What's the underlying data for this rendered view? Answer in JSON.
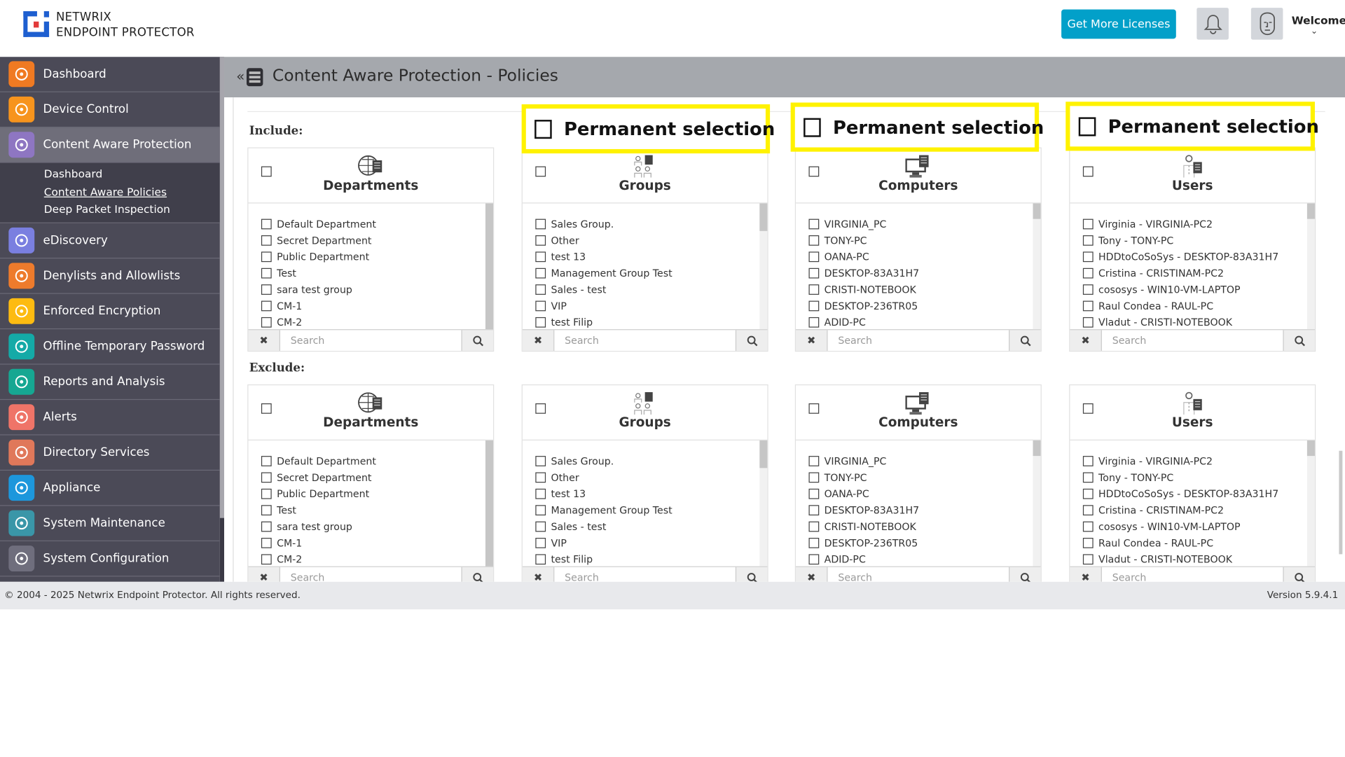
{
  "header": {
    "brand_line1": "NETWRIX",
    "brand_line2": "ENDPOINT PROTECTOR",
    "get_licenses": "Get More Licenses",
    "welcome": "Welcome",
    "accent": "#02a0c9"
  },
  "sidebar": {
    "items": [
      {
        "label": "Dashboard",
        "icon": "pie-chart-icon",
        "color": "#f07a22"
      },
      {
        "label": "Device Control",
        "icon": "usb-icon",
        "color": "#f7941d"
      },
      {
        "label": "Content Aware Protection",
        "icon": "document-scan-icon",
        "color": "#8e76c2",
        "active": true
      },
      {
        "label": "eDiscovery",
        "icon": "telescope-icon",
        "color": "#7a7fe0"
      },
      {
        "label": "Denylists and Allowlists",
        "icon": "checklist-icon",
        "color": "#ee7b2c"
      },
      {
        "label": "Enforced Encryption",
        "icon": "dial-lock-icon",
        "color": "#fdbb11"
      },
      {
        "label": "Offline Temporary Password",
        "icon": "keypad-icon",
        "color": "#14aaa7"
      },
      {
        "label": "Reports and Analysis",
        "icon": "area-chart-icon",
        "color": "#16a792"
      },
      {
        "label": "Alerts",
        "icon": "warning-icon",
        "color": "#ef7468"
      },
      {
        "label": "Directory Services",
        "icon": "briefcase-sync-icon",
        "color": "#e0785a"
      },
      {
        "label": "Appliance",
        "icon": "appliance-icon",
        "color": "#1d97dc"
      },
      {
        "label": "System Maintenance",
        "icon": "tools-icon",
        "color": "#3a96a8"
      },
      {
        "label": "System Configuration",
        "icon": "gear-icon",
        "color": "#6f6e7d"
      }
    ],
    "submenu": [
      "Dashboard",
      "Content Aware Policies",
      "Deep Packet Inspection"
    ],
    "submenu_current": "Content Aware Policies"
  },
  "titlebar": {
    "title": "Content Aware Protection - Policies"
  },
  "include_label": "Include:",
  "exclude_label": "Exclude:",
  "permanent_selection": "Permanent selection",
  "search_placeholder": "Search",
  "cards": [
    {
      "title": "Departments",
      "icon": "globe-document-icon",
      "items": [
        "Default Department",
        "Secret Department",
        "Public Department",
        "Test",
        "sara test group",
        "CM-1",
        "CM-2"
      ]
    },
    {
      "title": "Groups",
      "icon": "group-users-icon",
      "items": [
        "Sales Group.",
        "Other",
        "test 13",
        "Management Group Test",
        "Sales - test",
        "VIP",
        "test Filip"
      ]
    },
    {
      "title": "Computers",
      "icon": "computer-icon",
      "items": [
        "VIRGINIA_PC",
        "TONY-PC",
        "OANA-PC",
        "DESKTOP-83A31H7",
        "CRISTI-NOTEBOOK",
        "DESKTOP-236TR05",
        "ADID-PC"
      ]
    },
    {
      "title": "Users",
      "icon": "user-icon",
      "items": [
        "Virginia - VIRGINIA-PC2",
        "Tony - TONY-PC",
        "HDDtoCoSoSys - DESKTOP-83A31H7",
        "Cristina - CRISTINAM-PC2",
        "cososys - WIN10-VM-LAPTOP",
        "Raul Condea - RAUL-PC",
        "Vladut - CRISTI-NOTEBOOK"
      ]
    }
  ],
  "footer": {
    "copyright": "© 2004 - 2025 Netwrix Endpoint Protector. All rights reserved.",
    "version": "Version 5.9.4.1"
  },
  "highlight_color": "#fff200"
}
